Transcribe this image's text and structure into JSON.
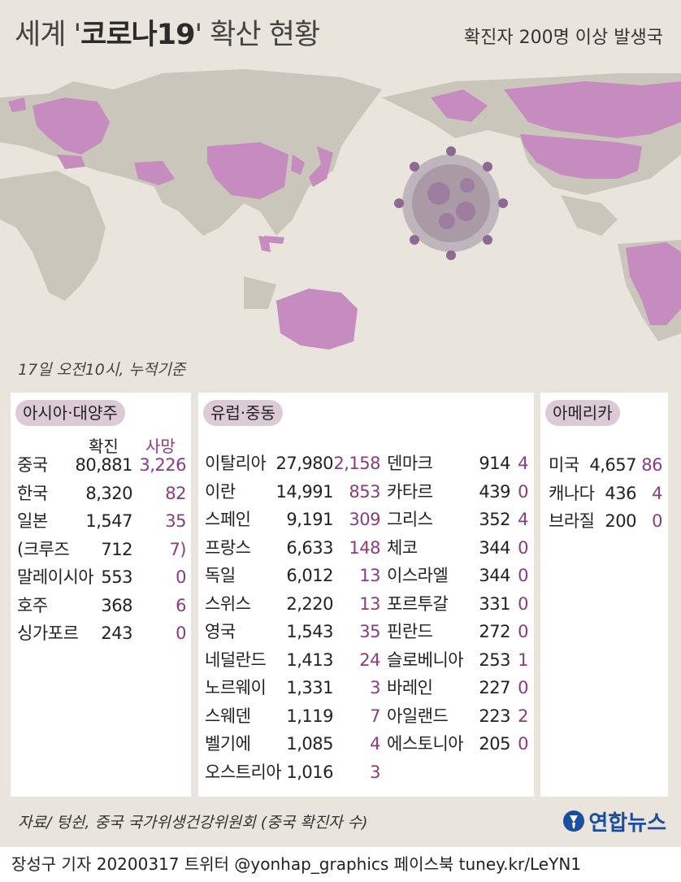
{
  "header": {
    "title_pre": "세계 '",
    "title_hl": "코로나19",
    "title_post": "' 확산 현황",
    "subtitle": "확진자 200명 이상 발생국"
  },
  "asof": "17일 오전10시, 누적기준",
  "columns": {
    "confirmed": "확진",
    "deaths": "사망"
  },
  "asia": {
    "label": "아시아·대양주",
    "rows": [
      {
        "name": "중국",
        "confirmed": "80,881",
        "deaths": "3,226"
      },
      {
        "name": "한국",
        "confirmed": "8,320",
        "deaths": "82"
      },
      {
        "name": "일본",
        "confirmed": "1,547",
        "deaths": "35"
      },
      {
        "name": "(크루즈",
        "confirmed": "712",
        "deaths": "7)"
      },
      {
        "name": "말레이시아",
        "confirmed": "553",
        "deaths": "0"
      },
      {
        "name": "호주",
        "confirmed": "368",
        "deaths": "6"
      },
      {
        "name": "싱가포르",
        "confirmed": "243",
        "deaths": "0"
      }
    ]
  },
  "europe": {
    "label": "유럽·중동",
    "left": [
      {
        "name": "이탈리아",
        "confirmed": "27,980",
        "deaths": "2,158"
      },
      {
        "name": "이란",
        "confirmed": "14,991",
        "deaths": "853"
      },
      {
        "name": "스페인",
        "confirmed": "9,191",
        "deaths": "309"
      },
      {
        "name": "프랑스",
        "confirmed": "6,633",
        "deaths": "148"
      },
      {
        "name": "독일",
        "confirmed": "6,012",
        "deaths": "13"
      },
      {
        "name": "스위스",
        "confirmed": "2,220",
        "deaths": "13"
      },
      {
        "name": "영국",
        "confirmed": "1,543",
        "deaths": "35"
      },
      {
        "name": "네덜란드",
        "confirmed": "1,413",
        "deaths": "24"
      },
      {
        "name": "노르웨이",
        "confirmed": "1,331",
        "deaths": "3"
      },
      {
        "name": "스웨덴",
        "confirmed": "1,119",
        "deaths": "7"
      },
      {
        "name": "벨기에",
        "confirmed": "1,085",
        "deaths": "4"
      },
      {
        "name": "오스트리아",
        "confirmed": "1,016",
        "deaths": "3"
      }
    ],
    "right": [
      {
        "name": "덴마크",
        "confirmed": "914",
        "deaths": "4"
      },
      {
        "name": "카타르",
        "confirmed": "439",
        "deaths": "0"
      },
      {
        "name": "그리스",
        "confirmed": "352",
        "deaths": "4"
      },
      {
        "name": "체코",
        "confirmed": "344",
        "deaths": "0"
      },
      {
        "name": "이스라엘",
        "confirmed": "344",
        "deaths": "0"
      },
      {
        "name": "포르투갈",
        "confirmed": "331",
        "deaths": "0"
      },
      {
        "name": "핀란드",
        "confirmed": "272",
        "deaths": "0"
      },
      {
        "name": "슬로베니아",
        "confirmed": "253",
        "deaths": "1"
      },
      {
        "name": "바레인",
        "confirmed": "227",
        "deaths": "0"
      },
      {
        "name": "아일랜드",
        "confirmed": "223",
        "deaths": "2"
      },
      {
        "name": "에스토니아",
        "confirmed": "205",
        "deaths": "0"
      }
    ]
  },
  "americas": {
    "label": "아메리카",
    "rows": [
      {
        "name": "미국",
        "confirmed": "4,657",
        "deaths": "86"
      },
      {
        "name": "캐나다",
        "confirmed": "436",
        "deaths": "4"
      },
      {
        "name": "브라질",
        "confirmed": "200",
        "deaths": "0"
      }
    ]
  },
  "source": "자료/ 텅쉰, 중국 국가위생건강위원회 (중국 확진자 수)",
  "logo": "연합뉴스",
  "footer": "장성구 기자  20200317 트위터 @yonhap_graphics  페이스북 tuney.kr/LeYN1",
  "colors": {
    "bg": "#e9e5dc",
    "land": "#cbc6bb",
    "affected": "#c68bbf",
    "deaths": "#8a3c83",
    "tag": "#dccbd6"
  }
}
